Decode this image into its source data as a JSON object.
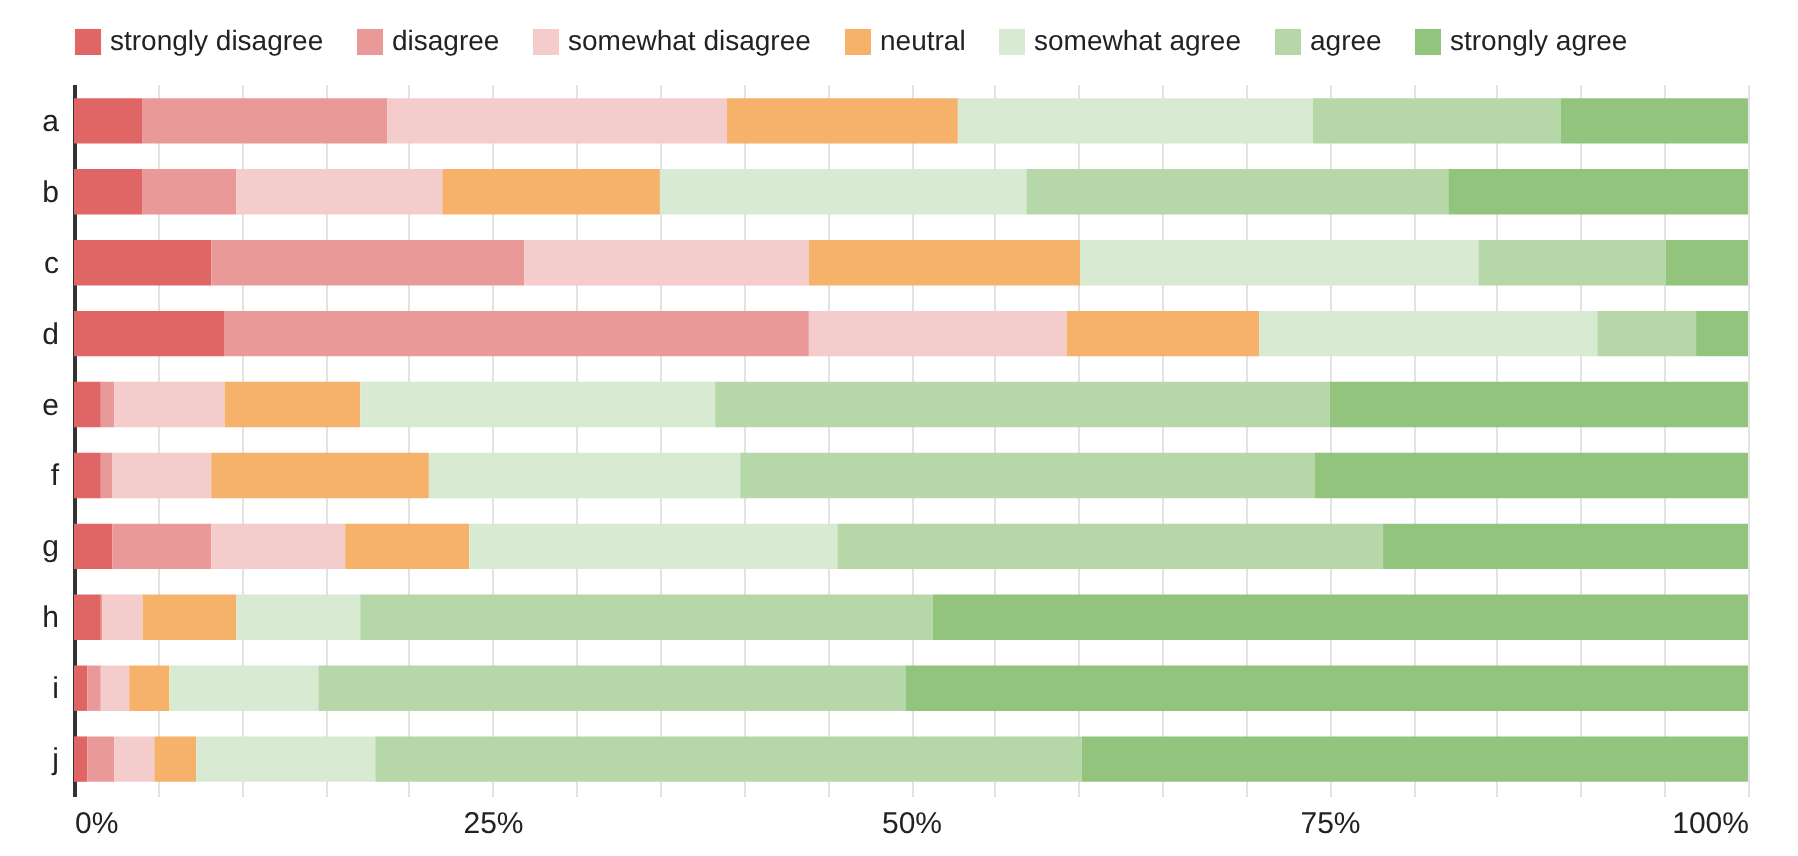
{
  "chart_data": {
    "type": "bar",
    "orientation": "horizontal",
    "stacked": true,
    "categories": [
      "a",
      "b",
      "c",
      "d",
      "e",
      "f",
      "g",
      "h",
      "i",
      "j"
    ],
    "series": [
      {
        "name": "strongly disagree",
        "color": "#e06666",
        "values": [
          4.1,
          4.1,
          8.2,
          9.0,
          1.6,
          1.6,
          2.3,
          1.6,
          0.8,
          0.8
        ]
      },
      {
        "name": "disagree",
        "color": "#ea9999",
        "values": [
          14.6,
          5.6,
          18.7,
          34.9,
          0.8,
          0.7,
          5.9,
          0.1,
          0.8,
          1.6
        ]
      },
      {
        "name": "somewhat disagree",
        "color": "#f4cccc",
        "values": [
          20.3,
          12.3,
          17.0,
          15.4,
          6.6,
          5.9,
          8.0,
          2.4,
          1.7,
          2.4
        ]
      },
      {
        "name": "neutral",
        "color": "#f6b26b",
        "values": [
          13.8,
          13.0,
          16.2,
          11.5,
          8.1,
          13.0,
          7.4,
          5.6,
          2.4,
          2.5
        ]
      },
      {
        "name": "somewhat agree",
        "color": "#d9ead3",
        "values": [
          21.2,
          21.9,
          23.8,
          20.2,
          21.2,
          18.6,
          22.0,
          7.4,
          8.9,
          10.7
        ]
      },
      {
        "name": "agree",
        "color": "#b6d7a8",
        "values": [
          14.8,
          25.2,
          11.2,
          5.9,
          36.7,
          34.3,
          32.6,
          34.2,
          35.1,
          42.2
        ]
      },
      {
        "name": "strongly agree",
        "color": "#93c47d",
        "values": [
          11.2,
          17.9,
          4.9,
          3.1,
          25.0,
          25.9,
          21.8,
          48.7,
          50.3,
          39.8
        ]
      }
    ],
    "xlim": [
      0,
      100
    ],
    "xticks": [
      {
        "value": 0,
        "label": "0%"
      },
      {
        "value": 5,
        "label": null
      },
      {
        "value": 10,
        "label": null
      },
      {
        "value": 15,
        "label": null
      },
      {
        "value": 20,
        "label": null
      },
      {
        "value": 25,
        "label": "25%"
      },
      {
        "value": 30,
        "label": null
      },
      {
        "value": 35,
        "label": null
      },
      {
        "value": 40,
        "label": null
      },
      {
        "value": 45,
        "label": null
      },
      {
        "value": 50,
        "label": "50%"
      },
      {
        "value": 55,
        "label": null
      },
      {
        "value": 60,
        "label": null
      },
      {
        "value": 65,
        "label": null
      },
      {
        "value": 70,
        "label": null
      },
      {
        "value": 75,
        "label": "75%"
      },
      {
        "value": 80,
        "label": null
      },
      {
        "value": 85,
        "label": null
      },
      {
        "value": 90,
        "label": null
      },
      {
        "value": 95,
        "label": null
      },
      {
        "value": 100,
        "label": "100%"
      }
    ],
    "grid": "x",
    "legend": "top"
  }
}
